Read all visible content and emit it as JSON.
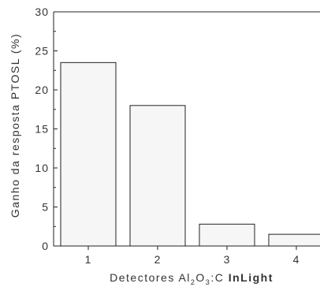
{
  "chart_data": {
    "type": "bar",
    "categories": [
      "1",
      "2",
      "3",
      "4"
    ],
    "values": [
      23.5,
      18.0,
      2.8,
      1.5
    ],
    "ylim": [
      0,
      30
    ],
    "yticks": [
      0,
      5,
      10,
      15,
      20,
      25,
      30
    ],
    "ylabel": "Ganho da resposta PTOSL (%)",
    "xlabel": {
      "prefix": "Detectores Al",
      "sub1": "2",
      "mid": "O",
      "sub2": "3",
      "suffix": ":C ",
      "bold": "InLight"
    },
    "bar_fill": "#f6f6f6",
    "bar_stroke": "#222222",
    "grid": false
  }
}
